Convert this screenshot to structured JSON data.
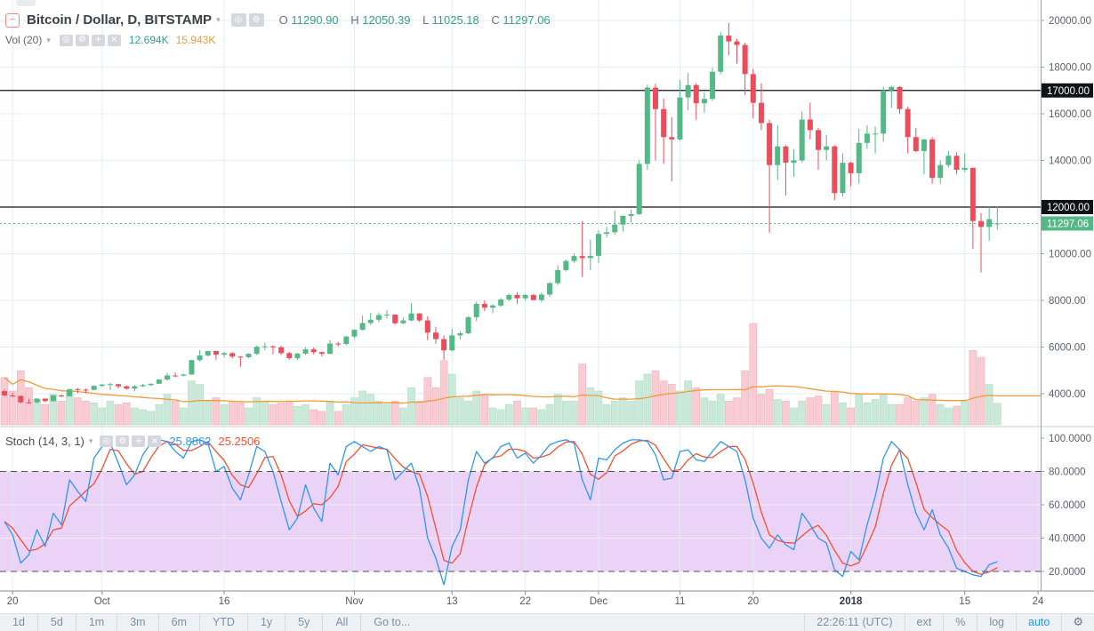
{
  "header": {
    "collapse_glyph": "−",
    "symbol_title": "Bitcoin / Dollar, D, BITSTAMP",
    "dropdown_glyph": "▾",
    "eye_glyph": "◎",
    "gear_glyph": "⚙",
    "plus_glyph": "+",
    "close_glyph": "×",
    "ohlc": {
      "o_label": "O",
      "o_value": "11290.90",
      "h_label": "H",
      "h_value": "12050.39",
      "l_label": "L",
      "l_value": "11025.18",
      "c_label": "C",
      "c_value": "11297.06"
    },
    "volume_row": {
      "label": "Vol (20)",
      "current": "12.694K",
      "average": "15.943K"
    }
  },
  "stoch_legend": {
    "label": "Stoch (14, 3, 1)",
    "k_value": "25.8862",
    "d_value": "25.2506"
  },
  "price_axis": {
    "ticks": [
      {
        "label": "20000.00",
        "value": 20000
      },
      {
        "label": "18000.00",
        "value": 18000
      },
      {
        "label": "16000.00",
        "value": 16000
      },
      {
        "label": "14000.00",
        "value": 14000
      },
      {
        "label": "10000.00",
        "value": 10000
      },
      {
        "label": "8000.00",
        "value": 8000
      },
      {
        "label": "6000.00",
        "value": 6000
      },
      {
        "label": "4000.00",
        "value": 4000
      }
    ],
    "black_tags": [
      {
        "label": "17000.00",
        "value": 17000
      },
      {
        "label": "12000.00",
        "value": 12000
      }
    ],
    "last_price_tag": {
      "label": "11297.06",
      "value": 11297.06
    }
  },
  "stoch_axis": {
    "ticks": [
      {
        "label": "100.0000",
        "value": 100
      },
      {
        "label": "80.0000",
        "value": 80
      },
      {
        "label": "60.0000",
        "value": 60
      },
      {
        "label": "40.0000",
        "value": 40
      },
      {
        "label": "20.0000",
        "value": 20
      }
    ]
  },
  "time_axis": {
    "labels": [
      {
        "text": "20",
        "day": 1,
        "bold": false
      },
      {
        "text": "Oct",
        "day": 12,
        "bold": false
      },
      {
        "text": "16",
        "day": 27,
        "bold": false
      },
      {
        "text": "Nov",
        "day": 43,
        "bold": false
      },
      {
        "text": "13",
        "day": 55,
        "bold": false
      },
      {
        "text": "22",
        "day": 64,
        "bold": false
      },
      {
        "text": "Dec",
        "day": 73,
        "bold": false
      },
      {
        "text": "11",
        "day": 83,
        "bold": false
      },
      {
        "text": "20",
        "day": 92,
        "bold": false
      },
      {
        "text": "2018",
        "day": 104,
        "bold": true
      },
      {
        "text": "15",
        "day": 118,
        "bold": false
      },
      {
        "text": "24",
        "day": 127,
        "bold": false
      }
    ]
  },
  "toolbar": {
    "ranges": [
      "1d",
      "5d",
      "1m",
      "3m",
      "6m",
      "YTD",
      "1y",
      "5y",
      "All"
    ],
    "goto": "Go to...",
    "clock": "22:26:11 (UTC)",
    "ext": "ext",
    "percent": "%",
    "log": "log",
    "auto": "auto",
    "gear_glyph": "⚙"
  },
  "colors": {
    "up": "#53b987",
    "down": "#eb4d5c",
    "vol_up": "#cbe9d9",
    "vol_down": "#f8ccd2",
    "vol_up_border": "#aeddc6",
    "vol_down_border": "#f0b0ba",
    "ma": "#f29a38",
    "stoch_k": "#2d96f5",
    "stoch_d": "#f4502e",
    "band": "#ebd3f7",
    "grid": "#e4ecf3",
    "black_line": "#131314",
    "tag_black": "#111214",
    "tag_green": "#53b987",
    "axis_text": "#5a5f69",
    "frame": "#9aa0a9"
  },
  "chart_data": {
    "type": "candlestick+volume+stochastic",
    "title": "Bitcoin / Dollar, D, BITSTAMP",
    "x_start_date": "2017-09-19",
    "x_end_date": "2018-01-19",
    "price_axis_range": [
      2700,
      20900
    ],
    "stoch_axis_range": [
      0,
      100
    ],
    "overbought": 80,
    "oversold": 20,
    "hlines": [
      17000,
      12000
    ],
    "last_price": 11297.06,
    "volume_unit": "K",
    "candles_format": [
      "open",
      "high",
      "low",
      "close",
      "volume_k"
    ],
    "candles": [
      [
        4110,
        4180,
        3890,
        3924,
        28
      ],
      [
        3924,
        4050,
        3860,
        3905,
        20
      ],
      [
        3905,
        3930,
        3585,
        3631,
        32
      ],
      [
        3631,
        3790,
        3566,
        3630,
        22
      ],
      [
        3630,
        3810,
        3585,
        3792,
        15
      ],
      [
        3792,
        3795,
        3640,
        3682,
        12
      ],
      [
        3682,
        3950,
        3659,
        3926,
        18
      ],
      [
        3926,
        3970,
        3840,
        3892,
        14
      ],
      [
        3892,
        4210,
        3875,
        4197,
        20
      ],
      [
        4197,
        4250,
        4020,
        4174,
        16
      ],
      [
        4174,
        4215,
        4020,
        4163,
        14
      ],
      [
        4163,
        4360,
        4160,
        4338,
        13
      ],
      [
        4338,
        4410,
        4290,
        4395,
        10
      ],
      [
        4395,
        4470,
        4150,
        4409,
        14
      ],
      [
        4409,
        4430,
        4220,
        4317,
        12
      ],
      [
        4317,
        4352,
        4165,
        4218,
        13
      ],
      [
        4218,
        4373,
        4100,
        4318,
        10
      ],
      [
        4318,
        4420,
        4280,
        4370,
        9
      ],
      [
        4370,
        4440,
        4320,
        4427,
        8
      ],
      [
        4427,
        4625,
        4420,
        4610,
        12
      ],
      [
        4610,
        4890,
        4569,
        4780,
        18
      ],
      [
        4780,
        4920,
        4700,
        4772,
        14
      ],
      [
        4772,
        4860,
        4740,
        4823,
        10
      ],
      [
        4823,
        5450,
        4810,
        5440,
        26
      ],
      [
        5440,
        5860,
        5380,
        5640,
        24
      ],
      [
        5640,
        5840,
        5590,
        5830,
        14
      ],
      [
        5830,
        5840,
        5450,
        5677,
        16
      ],
      [
        5677,
        5790,
        5550,
        5740,
        12
      ],
      [
        5740,
        5780,
        5510,
        5590,
        14
      ],
      [
        5590,
        5600,
        5150,
        5565,
        13
      ],
      [
        5565,
        5740,
        5530,
        5710,
        10
      ],
      [
        5710,
        6060,
        5660,
        6010,
        16
      ],
      [
        6010,
        6190,
        5870,
        6030,
        14
      ],
      [
        6030,
        6070,
        5690,
        5990,
        12
      ],
      [
        5990,
        6050,
        5660,
        5740,
        13
      ],
      [
        5740,
        5790,
        5450,
        5525,
        14
      ],
      [
        5525,
        5750,
        5430,
        5720,
        11
      ],
      [
        5720,
        6000,
        5660,
        5900,
        12
      ],
      [
        5900,
        5980,
        5690,
        5780,
        9
      ],
      [
        5780,
        5810,
        5600,
        5710,
        8
      ],
      [
        5710,
        6290,
        5690,
        6150,
        14
      ],
      [
        6150,
        6225,
        6030,
        6130,
        8
      ],
      [
        6130,
        6470,
        6080,
        6450,
        12
      ],
      [
        6450,
        6750,
        6370,
        6740,
        16
      ],
      [
        6740,
        7350,
        6710,
        7030,
        20
      ],
      [
        7030,
        7470,
        6950,
        7170,
        18
      ],
      [
        7170,
        7480,
        7060,
        7370,
        14
      ],
      [
        7370,
        7580,
        7230,
        7390,
        12
      ],
      [
        7390,
        7400,
        6960,
        7020,
        14
      ],
      [
        7020,
        7270,
        6980,
        7140,
        10
      ],
      [
        7140,
        7880,
        7110,
        7440,
        22
      ],
      [
        7440,
        7460,
        7070,
        7140,
        14
      ],
      [
        7140,
        7320,
        6300,
        6620,
        28
      ],
      [
        6620,
        6870,
        6140,
        6340,
        22
      ],
      [
        6340,
        6500,
        5450,
        5857,
        38
      ],
      [
        5857,
        6780,
        5820,
        6500,
        30
      ],
      [
        6500,
        6680,
        6330,
        6590,
        16
      ],
      [
        6590,
        7320,
        6560,
        7280,
        14
      ],
      [
        7280,
        7950,
        7110,
        7850,
        20
      ],
      [
        7850,
        8000,
        7540,
        7690,
        18
      ],
      [
        7690,
        7850,
        7450,
        7780,
        10
      ],
      [
        7780,
        8100,
        7720,
        8040,
        9
      ],
      [
        8040,
        8290,
        7960,
        8230,
        12
      ],
      [
        8230,
        8350,
        7850,
        8090,
        14
      ],
      [
        8090,
        8270,
        8000,
        8230,
        10
      ],
      [
        8230,
        8280,
        8010,
        8015,
        10
      ],
      [
        8015,
        8340,
        7930,
        8250,
        9
      ],
      [
        8250,
        8790,
        8150,
        8740,
        12
      ],
      [
        8740,
        9500,
        8660,
        9300,
        18
      ],
      [
        9300,
        9750,
        9250,
        9690,
        14
      ],
      [
        9690,
        10000,
        9620,
        9900,
        14
      ],
      [
        9900,
        11395,
        9000,
        9815,
        36
      ],
      [
        9815,
        10600,
        9300,
        9910,
        22
      ],
      [
        9910,
        11000,
        9600,
        10850,
        20
      ],
      [
        10850,
        11150,
        10700,
        10920,
        12
      ],
      [
        10920,
        11850,
        10800,
        11250,
        14
      ],
      [
        11250,
        11650,
        10950,
        11620,
        16
      ],
      [
        11620,
        11900,
        11350,
        11700,
        14
      ],
      [
        11700,
        14000,
        11650,
        13850,
        26
      ],
      [
        13850,
        17250,
        13600,
        17120,
        30
      ],
      [
        17120,
        17290,
        14000,
        16200,
        32
      ],
      [
        16200,
        16650,
        13850,
        15000,
        26
      ],
      [
        15000,
        15850,
        13100,
        14900,
        24
      ],
      [
        14900,
        17450,
        14850,
        16700,
        20
      ],
      [
        16700,
        17750,
        16150,
        17230,
        26
      ],
      [
        17230,
        17300,
        15750,
        16450,
        22
      ],
      [
        16450,
        16920,
        16050,
        16640,
        16
      ],
      [
        16640,
        17980,
        16550,
        17800,
        14
      ],
      [
        17800,
        19500,
        17700,
        19350,
        18
      ],
      [
        19350,
        19891,
        18500,
        19100,
        14
      ],
      [
        19100,
        19220,
        18150,
        18950,
        16
      ],
      [
        18950,
        19050,
        16800,
        17700,
        32
      ],
      [
        17700,
        17920,
        15800,
        16470,
        60
      ],
      [
        16470,
        17300,
        15300,
        15600,
        18
      ],
      [
        15600,
        15750,
        10900,
        13800,
        21
      ],
      [
        13800,
        15500,
        13150,
        14600,
        15
      ],
      [
        14600,
        14650,
        12500,
        13900,
        14
      ],
      [
        13900,
        14490,
        13300,
        14000,
        10
      ],
      [
        14000,
        16100,
        13900,
        15750,
        14
      ],
      [
        15750,
        16480,
        14900,
        15300,
        16
      ],
      [
        15300,
        15400,
        13600,
        14450,
        17
      ],
      [
        14450,
        15100,
        14000,
        14600,
        12
      ],
      [
        14600,
        14650,
        12300,
        12600,
        20
      ],
      [
        12600,
        14300,
        12450,
        13900,
        13
      ],
      [
        13900,
        13950,
        12900,
        13450,
        10
      ],
      [
        13450,
        15350,
        13000,
        14750,
        18
      ],
      [
        14750,
        15500,
        14500,
        15150,
        13
      ],
      [
        15150,
        15450,
        14300,
        15150,
        15
      ],
      [
        15150,
        17150,
        14800,
        17000,
        18
      ],
      [
        17000,
        17200,
        16250,
        17150,
        12
      ],
      [
        17150,
        17180,
        16000,
        16200,
        12
      ],
      [
        16200,
        16300,
        14300,
        15000,
        16
      ],
      [
        15000,
        15400,
        14350,
        14400,
        14
      ],
      [
        14400,
        14920,
        13400,
        14900,
        16
      ],
      [
        14900,
        15000,
        13000,
        13250,
        18
      ],
      [
        13250,
        14000,
        13000,
        13800,
        12
      ],
      [
        13800,
        14400,
        13700,
        14200,
        10
      ],
      [
        14200,
        14350,
        13400,
        13600,
        11
      ],
      [
        13600,
        14300,
        13500,
        13680,
        14
      ],
      [
        13680,
        13700,
        10200,
        11400,
        44
      ],
      [
        11400,
        11750,
        9200,
        11150,
        40
      ],
      [
        11150,
        12050,
        10550,
        11480,
        24
      ],
      [
        11290.9,
        12050.39,
        11025.18,
        11297.06,
        12.694
      ]
    ],
    "stoch_k": [
      50,
      42,
      25,
      30,
      45,
      35,
      55,
      48,
      75,
      68,
      62,
      88,
      95,
      97,
      85,
      72,
      78,
      90,
      97,
      99,
      98,
      92,
      88,
      98,
      99,
      97,
      80,
      83,
      70,
      63,
      78,
      95,
      92,
      80,
      62,
      45,
      52,
      72,
      58,
      50,
      85,
      78,
      95,
      98,
      95,
      92,
      95,
      93,
      75,
      80,
      85,
      70,
      40,
      28,
      12,
      35,
      45,
      75,
      92,
      85,
      88,
      95,
      97,
      88,
      91,
      85,
      90,
      96,
      98,
      99,
      97,
      75,
      63,
      88,
      87,
      93,
      97,
      99,
      99,
      98,
      90,
      75,
      76,
      92,
      93,
      87,
      86,
      92,
      98,
      95,
      92,
      75,
      52,
      40,
      34,
      42,
      36,
      33,
      55,
      48,
      40,
      37,
      21,
      17,
      32,
      27,
      48,
      65,
      88,
      98,
      93,
      72,
      55,
      45,
      57,
      42,
      34,
      22,
      20,
      18,
      17,
      24,
      25.89
    ],
    "stoch_k_last": 25.8862,
    "stoch_d_last": 25.2506,
    "volume_current_k": 12.694,
    "volume_ma20_k": 15.943
  }
}
